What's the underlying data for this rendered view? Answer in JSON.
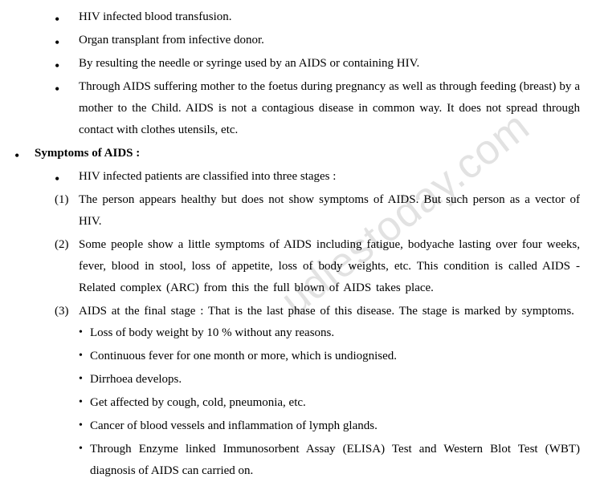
{
  "transmission": {
    "items": [
      "HIV infected blood transfusion.",
      "Organ transplant from infective donor.",
      "By resulting the needle or syringe used by an AIDS or containing HIV.",
      "Through AIDS suffering mother to the foetus during pregnancy as well as through feeding (breast) by a mother to the Child. AIDS is not a contagious disease in common way. It does not spread through contact with clothes utensils, etc."
    ]
  },
  "symptoms": {
    "heading": "Symptoms of AIDS :",
    "intro": "HIV infected patients are classified into three stages :",
    "stages": [
      {
        "num": "(1)",
        "text": "The person appears healthy but does not show symptoms of AIDS. But such person as a vector of HIV."
      },
      {
        "num": "(2)",
        "text": "Some people show a little symptoms of AIDS including fatigue, bodyache lasting over four weeks, fever, blood in stool, loss of appetite, loss of body weights, etc. This condition is called AIDS - Related complex (ARC) from this the full blown of AIDS takes place."
      },
      {
        "num": "(3)",
        "text": "AIDS at the final stage : That is the last phase of this disease. The stage is marked by symptoms.",
        "subitems": [
          "Loss of body weight by 10 % without any reasons.",
          "Continuous fever for one month or more, which is undiognised.",
          "Dirrhoea develops.",
          "Get affected by cough, cold, pneumonia, etc.",
          "Cancer of blood vessels and inflammation of lymph glands.",
          "Through Enzyme linked Immunosorbent Assay (ELISA) Test and Western Blot Test (WBT) diagnosis of AIDS can carried on."
        ]
      }
    ]
  },
  "watermark_text": "udiestoday.com"
}
